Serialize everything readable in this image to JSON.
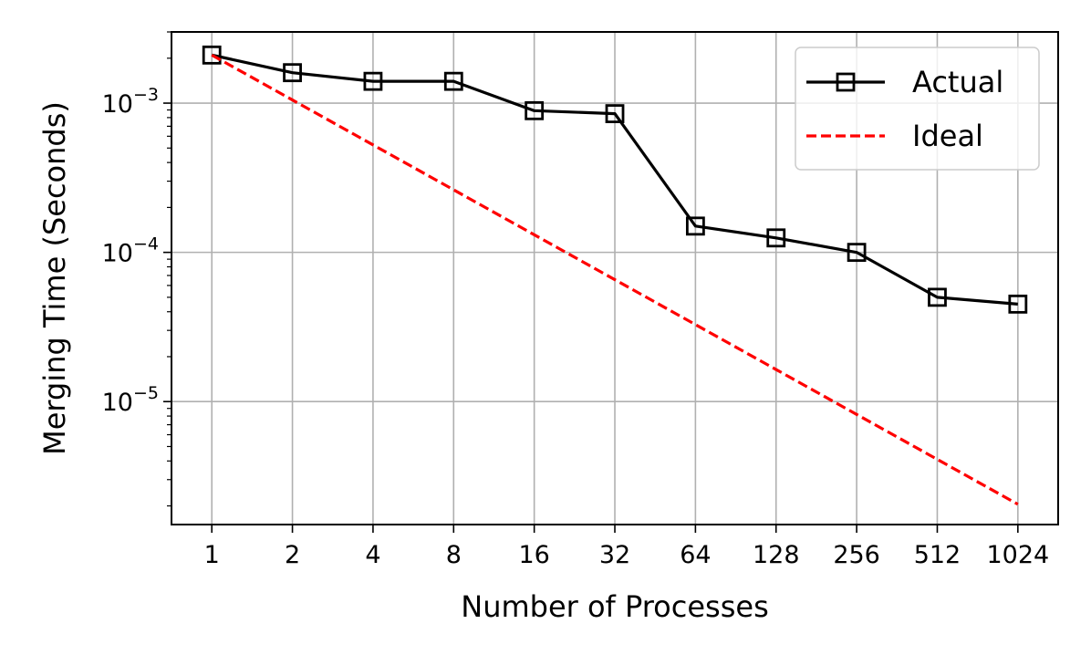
{
  "chart_data": {
    "type": "line",
    "xlabel": "Number of Processes",
    "ylabel": "Merging Time (Seconds)",
    "x_scale": "log2",
    "y_scale": "log10",
    "categories": [
      "1",
      "2",
      "4",
      "8",
      "16",
      "32",
      "64",
      "128",
      "256",
      "512",
      "1024"
    ],
    "x": [
      1,
      2,
      4,
      8,
      16,
      32,
      64,
      128,
      256,
      512,
      1024
    ],
    "xlim": [
      0.707,
      1448
    ],
    "ylim": [
      1.5e-06,
      0.003
    ],
    "y_ticks": [
      {
        "value": 1e-05,
        "base": "10",
        "exp": "−5"
      },
      {
        "value": 0.0001,
        "base": "10",
        "exp": "−4"
      },
      {
        "value": 0.001,
        "base": "10",
        "exp": "−3"
      }
    ],
    "grid": true,
    "legend_position": "top-right",
    "series": [
      {
        "name": "Actual",
        "values": [
          0.0021,
          0.0016,
          0.0014,
          0.0014,
          0.00089,
          0.00085,
          0.00015,
          0.000125,
          0.0001,
          5e-05,
          4.5e-05
        ],
        "color": "#000000",
        "line_style": "solid",
        "marker": "square"
      },
      {
        "name": "Ideal",
        "values": [
          0.0021,
          0.00105,
          0.000525,
          0.0002625,
          0.00013125,
          6.5625e-05,
          3.28125e-05,
          1.640625e-05,
          8.203125e-06,
          4.1015625e-06,
          2.05078125e-06
        ],
        "color": "#ff0000",
        "line_style": "dashed",
        "marker": "none"
      }
    ]
  }
}
